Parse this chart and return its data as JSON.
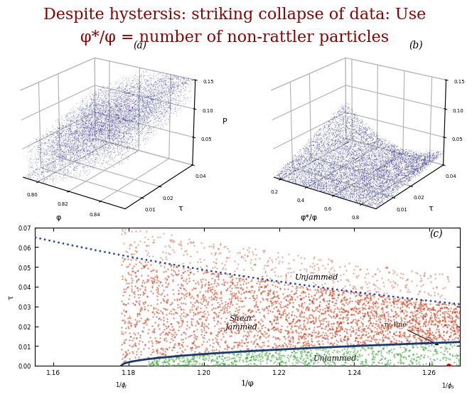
{
  "title_line1": "Despite hystersis: striking collapse of data: Use",
  "title_line2": "φ*/φ = number of non-rattler particles",
  "title_color": "#8B0000",
  "title_fontsize": 16,
  "bg_color": "#ffffff",
  "panel_a_label": "(a)",
  "panel_b_label": "(b)",
  "panel_c_label": "(c)",
  "panel_a_xlabel": "φ",
  "panel_b_xlabel": "φ*/φ",
  "panel_ab_ylabel": "τ",
  "panel_ab_zlabel": "P",
  "panel_c_xlabel": "1/φ",
  "panel_c_ylabel": "τ",
  "scatter_color": "#22228A",
  "panel_c_red": "#CC4422",
  "panel_c_green": "#44AA44",
  "panel_c_blue_solid": "#1a3a6e",
  "panel_c_blue_dot": "#2244AA",
  "arrow_label": "η₀ line"
}
